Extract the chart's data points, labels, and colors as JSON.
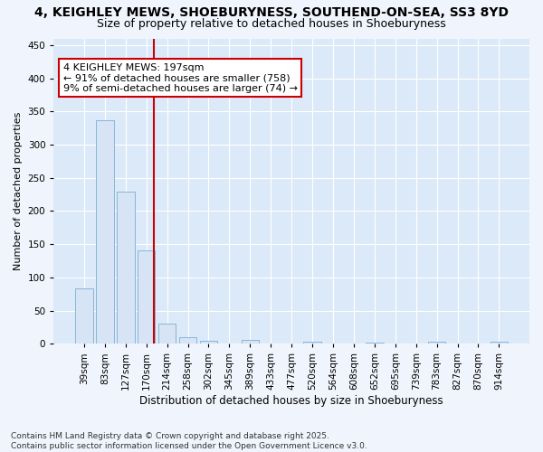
{
  "title1": "4, KEIGHLEY MEWS, SHOEBURYNESS, SOUTHEND-ON-SEA, SS3 8YD",
  "title2": "Size of property relative to detached houses in Shoeburyness",
  "xlabel": "Distribution of detached houses by size in Shoeburyness",
  "ylabel": "Number of detached properties",
  "categories": [
    "39sqm",
    "83sqm",
    "127sqm",
    "170sqm",
    "214sqm",
    "258sqm",
    "302sqm",
    "345sqm",
    "389sqm",
    "433sqm",
    "477sqm",
    "520sqm",
    "564sqm",
    "608sqm",
    "652sqm",
    "695sqm",
    "739sqm",
    "783sqm",
    "827sqm",
    "870sqm",
    "914sqm"
  ],
  "values": [
    84,
    337,
    229,
    140,
    30,
    10,
    5,
    0,
    6,
    0,
    0,
    3,
    0,
    0,
    2,
    0,
    0,
    3,
    0,
    0,
    3
  ],
  "bar_color": "#d6e4f5",
  "bar_edge_color": "#7bafd4",
  "vline_x_index": 3,
  "vline_color": "#cc0000",
  "annotation_text": "4 KEIGHLEY MEWS: 197sqm\n← 91% of detached houses are smaller (758)\n9% of semi-detached houses are larger (74) →",
  "annotation_box_color": "#ffffff",
  "annotation_box_edge": "#cc0000",
  "ylim": [
    0,
    460
  ],
  "yticks": [
    0,
    50,
    100,
    150,
    200,
    250,
    300,
    350,
    400,
    450
  ],
  "fig_bg_color": "#f0f4fc",
  "plot_bg": "#dce9f8",
  "footer": "Contains HM Land Registry data © Crown copyright and database right 2025.\nContains public sector information licensed under the Open Government Licence v3.0.",
  "title1_fontsize": 10,
  "title2_fontsize": 9,
  "xlabel_fontsize": 8.5,
  "ylabel_fontsize": 8,
  "tick_fontsize": 7.5,
  "annotation_fontsize": 8,
  "footer_fontsize": 6.5
}
